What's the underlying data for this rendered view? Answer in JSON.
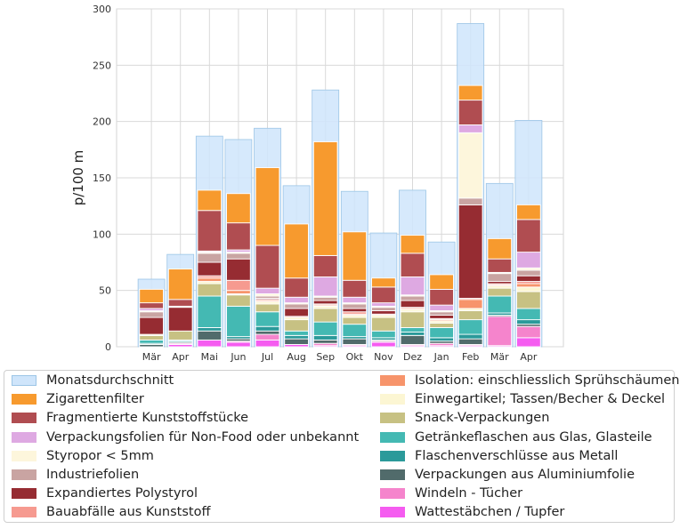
{
  "chart_data": {
    "type": "bar",
    "ylabel": "p/100 m",
    "xlabel": "",
    "ylim": [
      0,
      300
    ],
    "yticks": [
      0,
      50,
      100,
      150,
      200,
      250,
      300
    ],
    "grid": true,
    "legend_position": "bottom",
    "categories": [
      "Mär",
      "Apr",
      "Mai",
      "Jun",
      "Jul",
      "Aug",
      "Sep",
      "Okt",
      "Nov",
      "Dez",
      "Jan",
      "Feb",
      "Mär",
      "Apr"
    ],
    "background_series": {
      "name": "Monatsdurchschnitt",
      "color": "#cfe5fb",
      "values": [
        60,
        82,
        187,
        184,
        194,
        143,
        228,
        138,
        101,
        139,
        93,
        287,
        145,
        201
      ]
    },
    "series": [
      {
        "name": "Wattestäbchen / Tupfer",
        "color": "#f55cf0",
        "values": [
          0,
          2,
          6,
          4,
          6,
          2,
          1,
          1,
          4,
          1,
          1,
          1,
          1,
          8
        ]
      },
      {
        "name": "Windeln - Tücher",
        "color": "#f584cc",
        "values": [
          0,
          1,
          0,
          1,
          5,
          0,
          2,
          1,
          1,
          1,
          2,
          1,
          26,
          10
        ]
      },
      {
        "name": "Verpackungen aus Aluminiumfolie",
        "color": "#516b6b",
        "values": [
          2,
          1,
          8,
          2,
          3,
          5,
          3,
          5,
          1,
          8,
          2,
          5,
          1,
          2
        ]
      },
      {
        "name": "Flaschenverschlüsse aus Metall",
        "color": "#2b9a9a",
        "values": [
          1,
          1,
          3,
          2,
          4,
          3,
          4,
          2,
          2,
          3,
          3,
          4,
          2,
          4
        ]
      },
      {
        "name": "Getränkeflaschen aus Glas, Glasteile",
        "color": "#44b9b3",
        "values": [
          3,
          1,
          28,
          27,
          13,
          4,
          12,
          11,
          6,
          4,
          9,
          13,
          15,
          10
        ]
      },
      {
        "name": "Snack-Verpackungen",
        "color": "#c7c183",
        "values": [
          4,
          8,
          11,
          10,
          7,
          10,
          12,
          6,
          12,
          14,
          4,
          8,
          7,
          15
        ]
      },
      {
        "name": "Einwegartikel; Tassen/Becher & Deckel",
        "color": "#fcf6d3",
        "values": [
          1,
          0,
          2,
          1,
          2,
          2,
          2,
          2,
          2,
          2,
          2,
          2,
          2,
          4
        ]
      },
      {
        "name": "Isolation: einschliesslich Sprühschäumen",
        "color": "#f7946b",
        "values": [
          0,
          0,
          3,
          3,
          1,
          0,
          1,
          1,
          0,
          1,
          1,
          8,
          1,
          3
        ]
      },
      {
        "name": "Bauabfälle aus Kunststoff",
        "color": "#f69a90",
        "values": [
          0,
          0,
          2,
          9,
          1,
          1,
          1,
          2,
          1,
          1,
          1,
          1,
          1,
          2
        ]
      },
      {
        "name": "Expandiertes Polystyrol",
        "color": "#962c32",
        "values": [
          15,
          21,
          12,
          19,
          1,
          7,
          3,
          3,
          3,
          6,
          3,
          83,
          2,
          5
        ]
      },
      {
        "name": "Industriefolien",
        "color": "#c9a4a2",
        "values": [
          5,
          0,
          8,
          5,
          2,
          4,
          3,
          4,
          3,
          4,
          3,
          6,
          7,
          5
        ]
      },
      {
        "name": "Styropor < 5mm",
        "color": "#fdf6dc",
        "values": [
          1,
          1,
          1,
          1,
          2,
          1,
          1,
          1,
          1,
          1,
          1,
          58,
          1,
          2
        ]
      },
      {
        "name": "Verpackungsfolien für Non-Food oder unbekannt",
        "color": "#dea9e2",
        "values": [
          2,
          0,
          1,
          2,
          5,
          5,
          17,
          5,
          3,
          16,
          5,
          7,
          0,
          14
        ]
      },
      {
        "name": "Fragmentierte Kunststoffstücke",
        "color": "#b04d51",
        "values": [
          5,
          6,
          36,
          24,
          38,
          17,
          19,
          15,
          14,
          21,
          14,
          22,
          12,
          29
        ]
      },
      {
        "name": "Zigarettenfilter",
        "color": "#f79a2e",
        "values": [
          12,
          27,
          18,
          26,
          69,
          48,
          101,
          43,
          8,
          16,
          13,
          13,
          18,
          13
        ]
      }
    ]
  }
}
